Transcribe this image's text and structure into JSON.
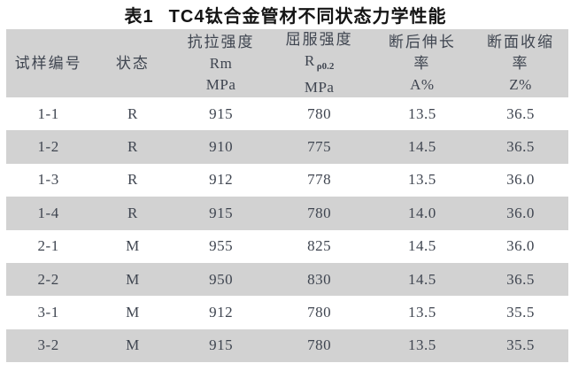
{
  "caption": {
    "label": "表1",
    "text": "TC4钛合金管材不同状态力学性能"
  },
  "table": {
    "columns": [
      {
        "title": "试样编号"
      },
      {
        "title": "状态"
      },
      {
        "title": "抗拉强度",
        "symbol": "Rm",
        "unit": "MPa"
      },
      {
        "title": "屈服强度",
        "symbol": "R",
        "symbol_sub": "ρ0.2",
        "unit": "MPa"
      },
      {
        "title": "断后伸长",
        "title2": "率",
        "symbol": "A%"
      },
      {
        "title": "断面收缩",
        "title2": "率",
        "symbol": "Z%"
      }
    ],
    "rows": [
      [
        "1-1",
        "R",
        "915",
        "780",
        "13.5",
        "36.5"
      ],
      [
        "1-2",
        "R",
        "910",
        "775",
        "14.5",
        "36.5"
      ],
      [
        "1-3",
        "R",
        "912",
        "778",
        "13.5",
        "36.0"
      ],
      [
        "1-4",
        "R",
        "915",
        "780",
        "14.0",
        "36.0"
      ],
      [
        "2-1",
        "M",
        "955",
        "825",
        "14.5",
        "36.0"
      ],
      [
        "2-2",
        "M",
        "950",
        "830",
        "14.5",
        "36.5"
      ],
      [
        "3-1",
        "M",
        "912",
        "780",
        "13.5",
        "35.5"
      ],
      [
        "3-2",
        "M",
        "915",
        "780",
        "13.5",
        "35.5"
      ]
    ]
  },
  "colors": {
    "band_gray": "#d2d2d2",
    "table_text": "#3f4550",
    "title_text": "#141414",
    "background": "#ffffff"
  },
  "chart_data": {
    "type": "table",
    "title": "表1 TC4钛合金管材不同状态力学性能",
    "columns": [
      "试样编号",
      "状态",
      "抗拉强度 Rm MPa",
      "屈服强度 Rρ0.2 MPa",
      "断后伸长率 A%",
      "断面收缩率 Z%"
    ],
    "rows": [
      [
        "1-1",
        "R",
        915,
        780,
        13.5,
        36.5
      ],
      [
        "1-2",
        "R",
        910,
        775,
        14.5,
        36.5
      ],
      [
        "1-3",
        "R",
        912,
        778,
        13.5,
        36.0
      ],
      [
        "1-4",
        "R",
        915,
        780,
        14.0,
        36.0
      ],
      [
        "2-1",
        "M",
        955,
        825,
        14.5,
        36.0
      ],
      [
        "2-2",
        "M",
        950,
        830,
        14.5,
        36.5
      ],
      [
        "3-1",
        "M",
        912,
        780,
        13.5,
        35.5
      ],
      [
        "3-2",
        "M",
        915,
        780,
        13.5,
        35.5
      ]
    ],
    "layout": {
      "header_background": "#d2d2d2",
      "zebra_striping": true,
      "grid": false
    }
  }
}
